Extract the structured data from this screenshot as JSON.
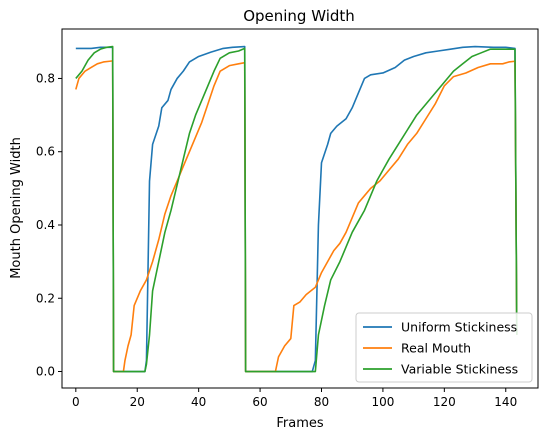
{
  "chart_data": {
    "type": "line",
    "title": "Opening Width",
    "xlabel": "Frames",
    "ylabel": "Mouth Opening Width",
    "xlim": [
      -4.5,
      150.5
    ],
    "ylim": [
      -0.045,
      0.935
    ],
    "xticks": [
      0,
      20,
      40,
      60,
      80,
      100,
      120,
      140
    ],
    "yticks": [
      0.0,
      0.2,
      0.4,
      0.6,
      0.8
    ],
    "ytick_labels": [
      "0.0",
      "0.2",
      "0.4",
      "0.6",
      "0.8"
    ],
    "grid": false,
    "legend_position": "lower-right",
    "series": [
      {
        "name": "Uniform Stickiness",
        "color": "#1f77b4",
        "points": [
          [
            0,
            0.882
          ],
          [
            5,
            0.882
          ],
          [
            8,
            0.885
          ],
          [
            11,
            0.885
          ],
          [
            12,
            0.885
          ],
          [
            12.3,
            0.0
          ],
          [
            22.5,
            0.0
          ],
          [
            23,
            0.03
          ],
          [
            24,
            0.52
          ],
          [
            25,
            0.62
          ],
          [
            27,
            0.67
          ],
          [
            28,
            0.72
          ],
          [
            30,
            0.74
          ],
          [
            31,
            0.77
          ],
          [
            33,
            0.8
          ],
          [
            35,
            0.82
          ],
          [
            37,
            0.845
          ],
          [
            40,
            0.86
          ],
          [
            44,
            0.872
          ],
          [
            48,
            0.882
          ],
          [
            51,
            0.885
          ],
          [
            55,
            0.887
          ],
          [
            55.3,
            0.0
          ],
          [
            77,
            0.0
          ],
          [
            78,
            0.03
          ],
          [
            79,
            0.4
          ],
          [
            80,
            0.57
          ],
          [
            82,
            0.62
          ],
          [
            83,
            0.65
          ],
          [
            85,
            0.67
          ],
          [
            88,
            0.69
          ],
          [
            90,
            0.72
          ],
          [
            92,
            0.76
          ],
          [
            94,
            0.8
          ],
          [
            96,
            0.81
          ],
          [
            100,
            0.815
          ],
          [
            104,
            0.83
          ],
          [
            107,
            0.85
          ],
          [
            110,
            0.86
          ],
          [
            114,
            0.87
          ],
          [
            118,
            0.875
          ],
          [
            122,
            0.88
          ],
          [
            126,
            0.885
          ],
          [
            130,
            0.887
          ],
          [
            136,
            0.885
          ],
          [
            140,
            0.885
          ],
          [
            143,
            0.882
          ],
          [
            143.6,
            0.1
          ]
        ]
      },
      {
        "name": "Real Mouth",
        "color": "#ff7f0e",
        "points": [
          [
            0,
            0.77
          ],
          [
            1,
            0.8
          ],
          [
            3,
            0.82
          ],
          [
            5,
            0.83
          ],
          [
            7,
            0.84
          ],
          [
            9,
            0.845
          ],
          [
            11,
            0.847
          ],
          [
            12,
            0.848
          ],
          [
            12.3,
            0.0
          ],
          [
            15.5,
            0.0
          ],
          [
            16,
            0.03
          ],
          [
            17,
            0.07
          ],
          [
            18,
            0.1
          ],
          [
            19,
            0.18
          ],
          [
            21,
            0.22
          ],
          [
            23,
            0.25
          ],
          [
            25,
            0.3
          ],
          [
            27,
            0.36
          ],
          [
            29,
            0.43
          ],
          [
            31,
            0.48
          ],
          [
            33,
            0.52
          ],
          [
            35,
            0.56
          ],
          [
            37,
            0.6
          ],
          [
            39,
            0.64
          ],
          [
            41,
            0.68
          ],
          [
            43,
            0.73
          ],
          [
            45,
            0.78
          ],
          [
            47,
            0.82
          ],
          [
            50,
            0.835
          ],
          [
            53,
            0.84
          ],
          [
            55,
            0.843
          ],
          [
            55.3,
            0.0
          ],
          [
            65,
            0.0
          ],
          [
            66,
            0.04
          ],
          [
            68,
            0.07
          ],
          [
            70,
            0.09
          ],
          [
            71,
            0.18
          ],
          [
            73,
            0.19
          ],
          [
            75,
            0.21
          ],
          [
            78,
            0.23
          ],
          [
            80,
            0.27
          ],
          [
            82,
            0.3
          ],
          [
            84,
            0.33
          ],
          [
            86,
            0.35
          ],
          [
            88,
            0.38
          ],
          [
            90,
            0.42
          ],
          [
            92,
            0.46
          ],
          [
            94,
            0.48
          ],
          [
            96,
            0.5
          ],
          [
            99,
            0.52
          ],
          [
            102,
            0.55
          ],
          [
            105,
            0.58
          ],
          [
            108,
            0.62
          ],
          [
            111,
            0.65
          ],
          [
            114,
            0.69
          ],
          [
            117,
            0.73
          ],
          [
            120,
            0.78
          ],
          [
            123,
            0.805
          ],
          [
            127,
            0.815
          ],
          [
            131,
            0.83
          ],
          [
            135,
            0.84
          ],
          [
            139,
            0.84
          ],
          [
            141,
            0.845
          ],
          [
            143,
            0.847
          ],
          [
            143.6,
            0.1
          ]
        ]
      },
      {
        "name": "Variable Stickiness",
        "color": "#2ca02c",
        "points": [
          [
            0,
            0.8
          ],
          [
            2,
            0.82
          ],
          [
            4,
            0.85
          ],
          [
            6,
            0.87
          ],
          [
            8,
            0.88
          ],
          [
            10,
            0.885
          ],
          [
            12,
            0.887
          ],
          [
            12.3,
            0.0
          ],
          [
            22.5,
            0.0
          ],
          [
            23,
            0.02
          ],
          [
            24,
            0.1
          ],
          [
            25,
            0.22
          ],
          [
            27,
            0.3
          ],
          [
            29,
            0.38
          ],
          [
            31,
            0.44
          ],
          [
            33,
            0.51
          ],
          [
            35,
            0.58
          ],
          [
            37,
            0.65
          ],
          [
            39,
            0.7
          ],
          [
            41,
            0.74
          ],
          [
            43,
            0.78
          ],
          [
            45,
            0.82
          ],
          [
            47,
            0.855
          ],
          [
            50,
            0.87
          ],
          [
            53,
            0.875
          ],
          [
            55,
            0.882
          ],
          [
            55.3,
            0.0
          ],
          [
            78,
            0.0
          ],
          [
            79,
            0.1
          ],
          [
            81,
            0.18
          ],
          [
            83,
            0.25
          ],
          [
            86,
            0.3
          ],
          [
            88,
            0.34
          ],
          [
            90,
            0.38
          ],
          [
            92,
            0.41
          ],
          [
            94,
            0.44
          ],
          [
            96,
            0.48
          ],
          [
            98,
            0.52
          ],
          [
            100,
            0.55
          ],
          [
            102,
            0.58
          ],
          [
            105,
            0.62
          ],
          [
            108,
            0.66
          ],
          [
            111,
            0.7
          ],
          [
            114,
            0.73
          ],
          [
            117,
            0.76
          ],
          [
            120,
            0.79
          ],
          [
            123,
            0.82
          ],
          [
            126,
            0.84
          ],
          [
            129,
            0.86
          ],
          [
            132,
            0.87
          ],
          [
            135,
            0.88
          ],
          [
            139,
            0.88
          ],
          [
            143,
            0.88
          ],
          [
            143.6,
            0.1
          ]
        ]
      }
    ]
  }
}
